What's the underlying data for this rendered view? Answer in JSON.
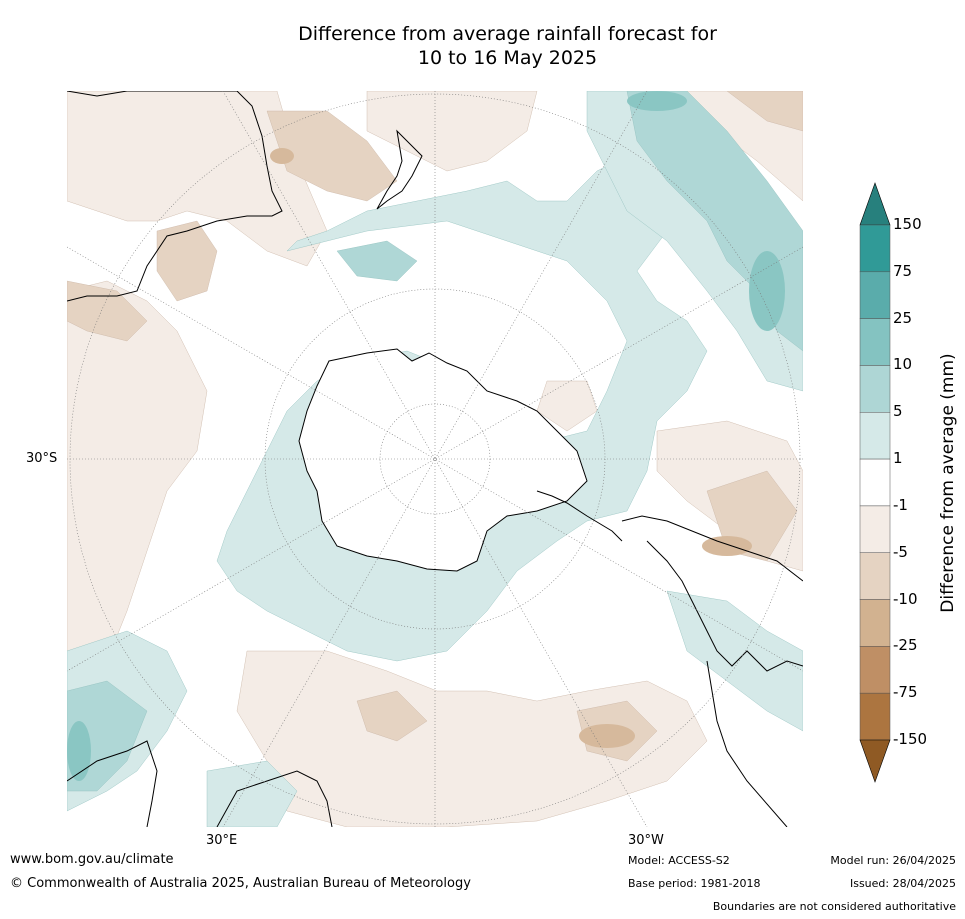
{
  "title_line1": "Difference from average rainfall forecast for",
  "title_line2": "10 to 16 May 2025",
  "map": {
    "projection": "south-polar-stereographic",
    "lat_label": "30°S",
    "lon_labels": [
      "30°E",
      "30°W"
    ],
    "colors": {
      "ocean_bg": "#ffffff",
      "dry_light": "#f4ece6",
      "dry_mid": "#e5d3c2",
      "dry_dark": "#d6b99c",
      "wet_light": "#d5e9e8",
      "wet_mid": "#afd7d6",
      "wet_dark": "#8ac6c3"
    }
  },
  "colorbar": {
    "title": "Difference from average (mm)",
    "ticks": [
      "150",
      "75",
      "25",
      "10",
      "5",
      "1",
      "-1",
      "-5",
      "-10",
      "-25",
      "-75",
      "-150"
    ],
    "colors": [
      "#27807d",
      "#309a97",
      "#5aacab",
      "#84c3c1",
      "#aed6d5",
      "#d5e9e8",
      "#ffffff",
      "#f4ece6",
      "#e5d3c2",
      "#d2b290",
      "#bf8f65",
      "#ac7540",
      "#8f5a24"
    ]
  },
  "footer": {
    "url": "www.bom.gov.au/climate",
    "copyright": "© Commonwealth of Australia 2025, Australian Bureau of Meteorology",
    "model": "Model: ACCESS-S2",
    "base_period": "Base period: 1981-2018",
    "model_run": "Model run: 26/04/2025",
    "issued": "Issued: 28/04/2025",
    "disclaimer": "Boundaries are not considered authoritative"
  }
}
